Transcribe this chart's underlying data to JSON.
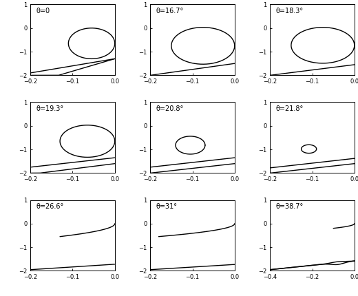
{
  "panels": [
    {
      "theta_label": "θ=0",
      "xlim": [
        -0.2,
        0
      ],
      "ylim": [
        -2,
        1
      ]
    },
    {
      "theta_label": "θ=16.7°",
      "xlim": [
        -0.2,
        0
      ],
      "ylim": [
        -2,
        1
      ]
    },
    {
      "theta_label": "θ=18.3°",
      "xlim": [
        -0.2,
        0
      ],
      "ylim": [
        -2,
        1
      ]
    },
    {
      "theta_label": "θ=19.3°",
      "xlim": [
        -0.2,
        0
      ],
      "ylim": [
        -2,
        1
      ]
    },
    {
      "theta_label": "θ=20.8°",
      "xlim": [
        -0.2,
        0
      ],
      "ylim": [
        -2,
        1
      ]
    },
    {
      "theta_label": "θ=21.8°",
      "xlim": [
        -0.2,
        0
      ],
      "ylim": [
        -2,
        1
      ]
    },
    {
      "theta_label": "θ=26.6°",
      "xlim": [
        -0.2,
        0
      ],
      "ylim": [
        -2,
        1
      ]
    },
    {
      "theta_label": "θ=31°",
      "xlim": [
        -0.2,
        0
      ],
      "ylim": [
        -2,
        1
      ]
    },
    {
      "theta_label": "θ=38.7°",
      "xlim": [
        -0.4,
        0
      ],
      "ylim": [
        -2,
        1
      ]
    }
  ],
  "nrows": 3,
  "ncols": 3,
  "fig_width": 5.2,
  "fig_height": 4.3,
  "linewidth": 1.0,
  "linecolor": "black",
  "yticks": [
    -2,
    -1,
    0,
    1
  ],
  "xticks_default": [
    -0.2,
    -0.1,
    0
  ],
  "xticks_last": [
    -0.4,
    -0.2,
    0
  ]
}
